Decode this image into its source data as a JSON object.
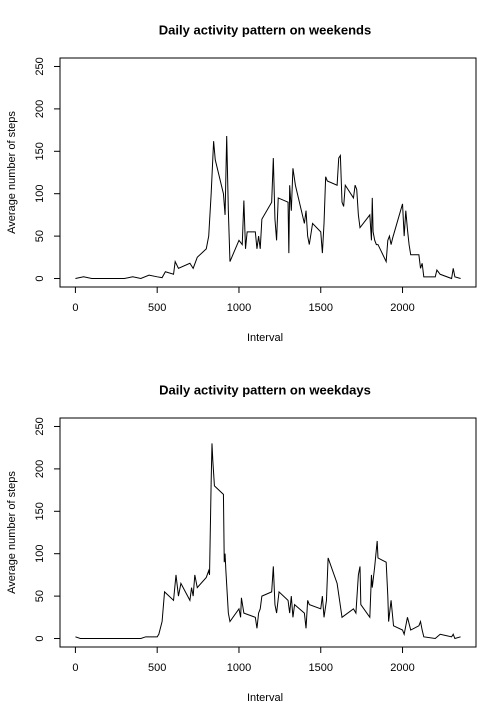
{
  "chart_data": [
    {
      "type": "line",
      "title": "Daily activity pattern on weekends",
      "x_label": "Interval",
      "y_label": "Average number of steps",
      "color": "#000000",
      "x": [
        0,
        50,
        100,
        200,
        300,
        350,
        400,
        450,
        500,
        530,
        550,
        600,
        610,
        630,
        700,
        720,
        745,
        800,
        815,
        830,
        845,
        855,
        905,
        915,
        925,
        935,
        945,
        1000,
        1020,
        1030,
        1040,
        1050,
        1100,
        1110,
        1120,
        1130,
        1140,
        1200,
        1210,
        1220,
        1230,
        1240,
        1300,
        1305,
        1310,
        1320,
        1330,
        1345,
        1400,
        1410,
        1420,
        1430,
        1450,
        1500,
        1510,
        1520,
        1530,
        1540,
        1600,
        1610,
        1620,
        1630,
        1640,
        1650,
        1700,
        1710,
        1720,
        1730,
        1740,
        1800,
        1810,
        1815,
        1820,
        1830,
        1840,
        1850,
        1900,
        1910,
        1920,
        1930,
        1940,
        2000,
        2010,
        2020,
        2030,
        2040,
        2050,
        2100,
        2110,
        2120,
        2130,
        2200,
        2210,
        2230,
        2300,
        2310,
        2320,
        2355
      ],
      "values": [
        0,
        2,
        0,
        0,
        0,
        2,
        0,
        4,
        2,
        1,
        8,
        5,
        20,
        12,
        18,
        12,
        25,
        35,
        50,
        100,
        162,
        140,
        100,
        75,
        168,
        80,
        20,
        45,
        40,
        92,
        35,
        55,
        55,
        35,
        50,
        35,
        70,
        90,
        142,
        70,
        45,
        95,
        90,
        30,
        110,
        80,
        130,
        110,
        65,
        80,
        50,
        40,
        65,
        55,
        30,
        65,
        120,
        115,
        110,
        142,
        145,
        90,
        85,
        110,
        95,
        110,
        105,
        75,
        60,
        75,
        45,
        95,
        55,
        45,
        40,
        40,
        20,
        45,
        50,
        40,
        48,
        88,
        50,
        80,
        58,
        40,
        28,
        28,
        12,
        18,
        2,
        2,
        10,
        5,
        0,
        12,
        2,
        0
      ],
      "xlim": [
        -94.2,
        2449.2
      ],
      "ylim": [
        -10,
        260
      ],
      "xticks": [
        0,
        500,
        1000,
        1500,
        2000
      ],
      "yticks": [
        0,
        50,
        100,
        150,
        200,
        250
      ]
    },
    {
      "type": "line",
      "title": "Daily activity pattern on weekdays",
      "x_label": "Interval",
      "y_label": "Average number of steps",
      "color": "#000000",
      "x": [
        0,
        30,
        100,
        200,
        300,
        400,
        430,
        500,
        510,
        530,
        545,
        600,
        615,
        630,
        645,
        700,
        710,
        720,
        730,
        745,
        800,
        815,
        820,
        830,
        835,
        840,
        850,
        905,
        910,
        915,
        920,
        935,
        945,
        1000,
        1010,
        1015,
        1030,
        1100,
        1110,
        1120,
        1130,
        1140,
        1200,
        1210,
        1220,
        1230,
        1245,
        1300,
        1310,
        1320,
        1330,
        1340,
        1400,
        1410,
        1420,
        1430,
        1500,
        1510,
        1520,
        1535,
        1545,
        1600,
        1615,
        1630,
        1700,
        1715,
        1730,
        1740,
        1745,
        1800,
        1810,
        1815,
        1830,
        1845,
        1850,
        1900,
        1910,
        1915,
        1930,
        1945,
        2000,
        2010,
        2030,
        2050,
        2100,
        2110,
        2120,
        2130,
        2200,
        2230,
        2300,
        2310,
        2320,
        2355
      ],
      "values": [
        2,
        0,
        0,
        0,
        0,
        0,
        2,
        2,
        5,
        20,
        55,
        45,
        75,
        50,
        65,
        45,
        60,
        50,
        75,
        60,
        72,
        80,
        75,
        185,
        230,
        210,
        180,
        170,
        90,
        100,
        80,
        30,
        20,
        35,
        25,
        48,
        30,
        25,
        12,
        30,
        35,
        50,
        55,
        85,
        40,
        30,
        55,
        45,
        30,
        50,
        25,
        40,
        30,
        12,
        45,
        40,
        35,
        50,
        25,
        45,
        95,
        65,
        45,
        25,
        35,
        30,
        75,
        85,
        40,
        25,
        75,
        60,
        85,
        115,
        95,
        90,
        50,
        20,
        45,
        15,
        10,
        5,
        25,
        10,
        15,
        20,
        10,
        2,
        0,
        5,
        2,
        5,
        0,
        2
      ],
      "xlim": [
        -94.2,
        2449.2
      ],
      "ylim": [
        -10,
        260
      ],
      "xticks": [
        0,
        500,
        1000,
        1500,
        2000
      ],
      "yticks": [
        0,
        50,
        100,
        150,
        200,
        250
      ]
    }
  ]
}
